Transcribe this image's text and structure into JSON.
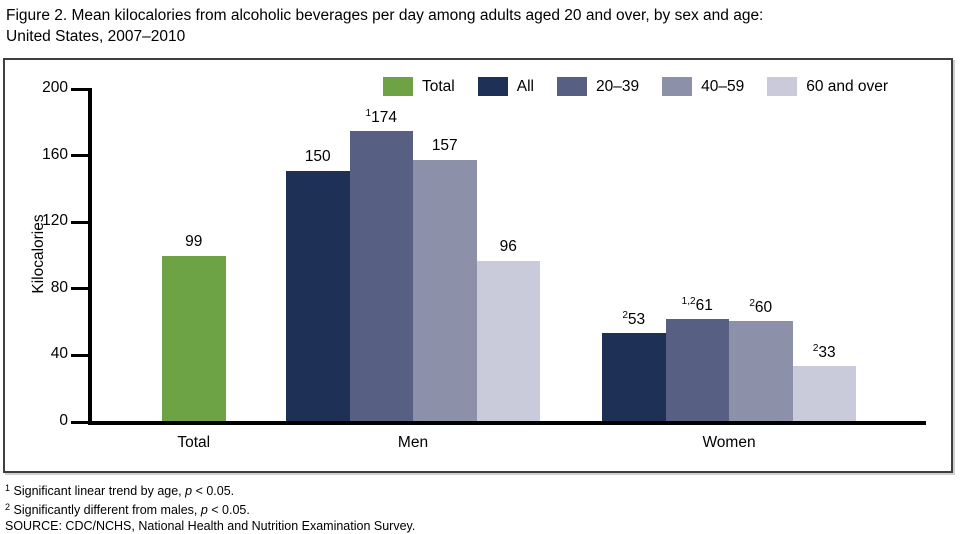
{
  "header": {
    "title_line1": "Figure 2. Mean kilocalories from alcoholic beverages per day among adults aged 20 and over, by sex and age:",
    "title_line2": "United States, 2007–2010"
  },
  "chart_data": {
    "type": "bar",
    "title": "Figure 2. Mean kilocalories from alcoholic beverages per day among adults aged 20 and over, by sex and age: United States, 2007–2010",
    "xlabel": "",
    "ylabel": "Kilocalories",
    "ylim": [
      0,
      200
    ],
    "yticks": [
      0,
      40,
      80,
      120,
      160,
      200
    ],
    "grid": false,
    "legend_position": "top-right-inside",
    "legend": [
      {
        "label": "Total",
        "color": "#6DA245"
      },
      {
        "label": "All",
        "color": "#1E3056"
      },
      {
        "label": "20–39",
        "color": "#575F82"
      },
      {
        "label": "40–59",
        "color": "#8D90A9"
      },
      {
        "label": "60 and over",
        "color": "#C9CBDB"
      }
    ],
    "groups": [
      {
        "label": "Total",
        "bars": [
          {
            "series": "Total",
            "value": 99,
            "sup": ""
          }
        ]
      },
      {
        "label": "Men",
        "bars": [
          {
            "series": "All",
            "value": 150,
            "sup": ""
          },
          {
            "series": "20–39",
            "value": 174,
            "sup": "1"
          },
          {
            "series": "40–59",
            "value": 157,
            "sup": ""
          },
          {
            "series": "60 and over",
            "value": 96,
            "sup": ""
          }
        ]
      },
      {
        "label": "Women",
        "bars": [
          {
            "series": "All",
            "value": 53,
            "sup": "2"
          },
          {
            "series": "20–39",
            "value": 61,
            "sup": "1,2"
          },
          {
            "series": "40–59",
            "value": 60,
            "sup": "2"
          },
          {
            "series": "60 and over",
            "value": 33,
            "sup": "2"
          }
        ]
      }
    ]
  },
  "footnotes": [
    {
      "sup": "1",
      "body": "Significant linear trend by age, ",
      "italic": "p",
      "tail": " < 0.05."
    },
    {
      "sup": "2",
      "body": "Significantly different from males, ",
      "italic": "p",
      "tail": " < 0.05."
    },
    {
      "sup": "",
      "body": "SOURCE: CDC/NCHS, National Health and Nutrition Examination Survey.",
      "italic": "",
      "tail": ""
    }
  ]
}
